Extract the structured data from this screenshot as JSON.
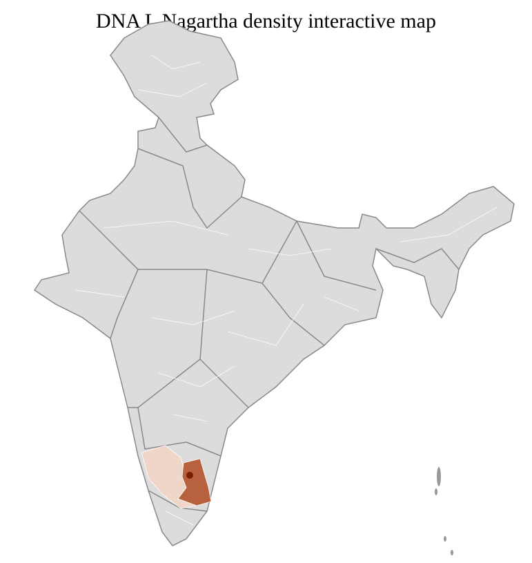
{
  "title": "DNA L Nagartha density interactive map",
  "colors": {
    "land": "#dcdcdc",
    "state_border": "#888888",
    "district_border": "#ffffff",
    "density_low": "#f0d6c8",
    "density_mid": "#b8613e",
    "density_high": "#7a1c00"
  }
}
